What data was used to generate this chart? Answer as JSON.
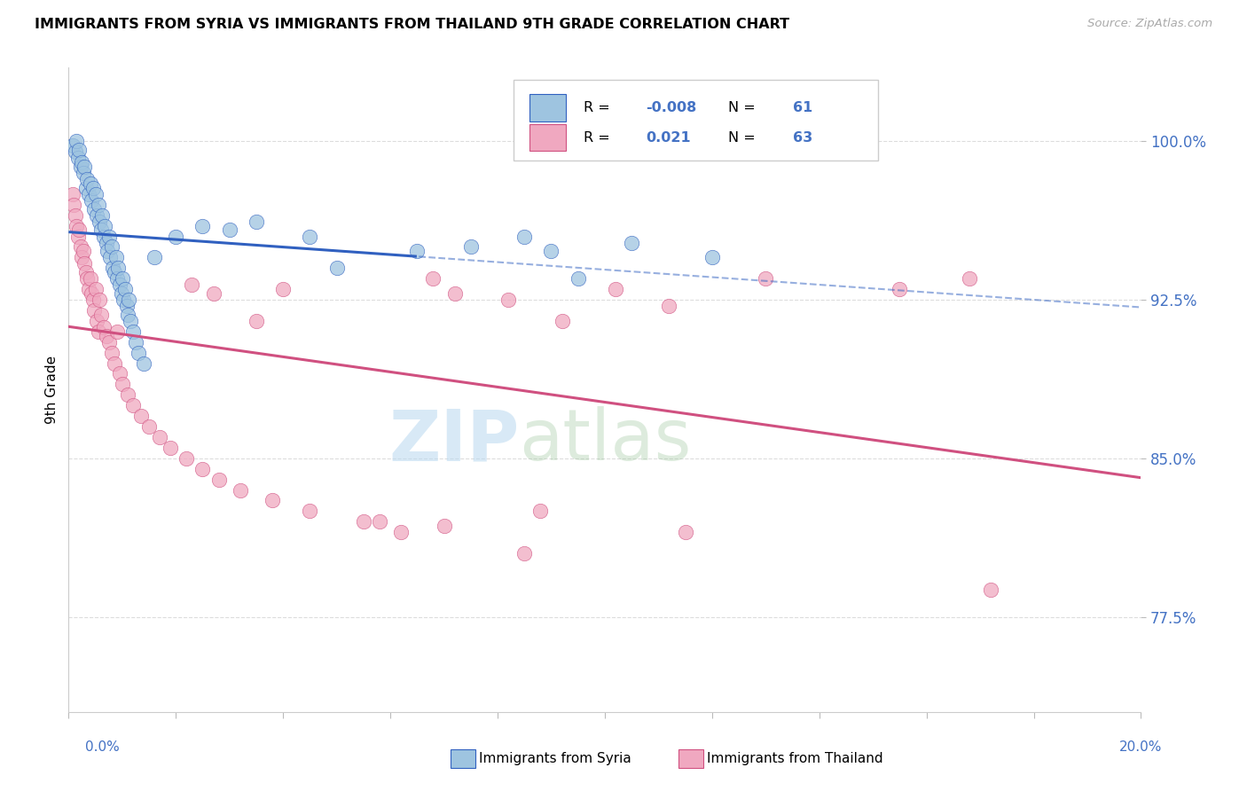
{
  "title": "IMMIGRANTS FROM SYRIA VS IMMIGRANTS FROM THAILAND 9TH GRADE CORRELATION CHART",
  "source": "Source: ZipAtlas.com",
  "ylabel": "9th Grade",
  "xlim": [
    0.0,
    20.0
  ],
  "ylim": [
    73.0,
    103.5
  ],
  "yticks": [
    77.5,
    85.0,
    92.5,
    100.0
  ],
  "ytick_labels": [
    "77.5%",
    "85.0%",
    "92.5%",
    "100.0%"
  ],
  "xtick_left_label": "0.0%",
  "xtick_right_label": "20.0%",
  "legend_syria": "Immigrants from Syria",
  "legend_thailand": "Immigrants from Thailand",
  "R_syria": -0.008,
  "N_syria": 61,
  "R_thailand": 0.021,
  "N_thailand": 63,
  "color_syria": "#9ec4e0",
  "color_thailand": "#f0a8c0",
  "color_blue": "#3060c0",
  "color_pink": "#d05080",
  "color_blue_text": "#4472c4",
  "syria_x": [
    0.08,
    0.12,
    0.15,
    0.18,
    0.2,
    0.22,
    0.25,
    0.28,
    0.3,
    0.32,
    0.35,
    0.38,
    0.4,
    0.42,
    0.45,
    0.48,
    0.5,
    0.52,
    0.55,
    0.58,
    0.6,
    0.62,
    0.65,
    0.68,
    0.7,
    0.72,
    0.75,
    0.78,
    0.8,
    0.82,
    0.85,
    0.88,
    0.9,
    0.92,
    0.95,
    0.98,
    1.0,
    1.02,
    1.05,
    1.08,
    1.1,
    1.12,
    1.15,
    1.2,
    1.25,
    1.3,
    1.4,
    1.6,
    2.0,
    2.5,
    3.0,
    3.5,
    4.5,
    5.0,
    6.5,
    7.5,
    8.5,
    9.0,
    9.5,
    10.5,
    12.0
  ],
  "syria_y": [
    99.8,
    99.5,
    100.0,
    99.2,
    99.6,
    98.8,
    99.0,
    98.5,
    98.8,
    97.8,
    98.2,
    97.5,
    98.0,
    97.2,
    97.8,
    96.8,
    97.5,
    96.5,
    97.0,
    96.2,
    95.8,
    96.5,
    95.5,
    96.0,
    95.2,
    94.8,
    95.5,
    94.5,
    95.0,
    94.0,
    93.8,
    94.5,
    93.5,
    94.0,
    93.2,
    92.8,
    93.5,
    92.5,
    93.0,
    92.2,
    91.8,
    92.5,
    91.5,
    91.0,
    90.5,
    90.0,
    89.5,
    94.5,
    95.5,
    96.0,
    95.8,
    96.2,
    95.5,
    94.0,
    94.8,
    95.0,
    95.5,
    94.8,
    93.5,
    95.2,
    94.5
  ],
  "thailand_x": [
    0.08,
    0.1,
    0.12,
    0.15,
    0.18,
    0.2,
    0.22,
    0.25,
    0.28,
    0.3,
    0.32,
    0.35,
    0.38,
    0.4,
    0.42,
    0.45,
    0.48,
    0.5,
    0.52,
    0.55,
    0.58,
    0.6,
    0.65,
    0.7,
    0.75,
    0.8,
    0.85,
    0.9,
    0.95,
    1.0,
    1.1,
    1.2,
    1.35,
    1.5,
    1.7,
    1.9,
    2.2,
    2.5,
    2.8,
    3.2,
    3.8,
    4.5,
    5.5,
    6.2,
    6.8,
    7.2,
    8.2,
    9.2,
    10.2,
    11.2,
    13.0,
    15.5,
    2.3,
    2.7,
    3.5,
    4.0,
    5.8,
    7.0,
    8.8,
    16.8,
    17.2,
    8.5,
    11.5
  ],
  "thailand_y": [
    97.5,
    97.0,
    96.5,
    96.0,
    95.5,
    95.8,
    95.0,
    94.5,
    94.8,
    94.2,
    93.8,
    93.5,
    93.0,
    93.5,
    92.8,
    92.5,
    92.0,
    93.0,
    91.5,
    91.0,
    92.5,
    91.8,
    91.2,
    90.8,
    90.5,
    90.0,
    89.5,
    91.0,
    89.0,
    88.5,
    88.0,
    87.5,
    87.0,
    86.5,
    86.0,
    85.5,
    85.0,
    84.5,
    84.0,
    83.5,
    83.0,
    82.5,
    82.0,
    81.5,
    93.5,
    92.8,
    92.5,
    91.5,
    93.0,
    92.2,
    93.5,
    93.0,
    93.2,
    92.8,
    91.5,
    93.0,
    82.0,
    81.8,
    82.5,
    93.5,
    78.8,
    80.5,
    81.5
  ],
  "dashed_line_y": 96.5,
  "solid_line_x_end": 6.5
}
